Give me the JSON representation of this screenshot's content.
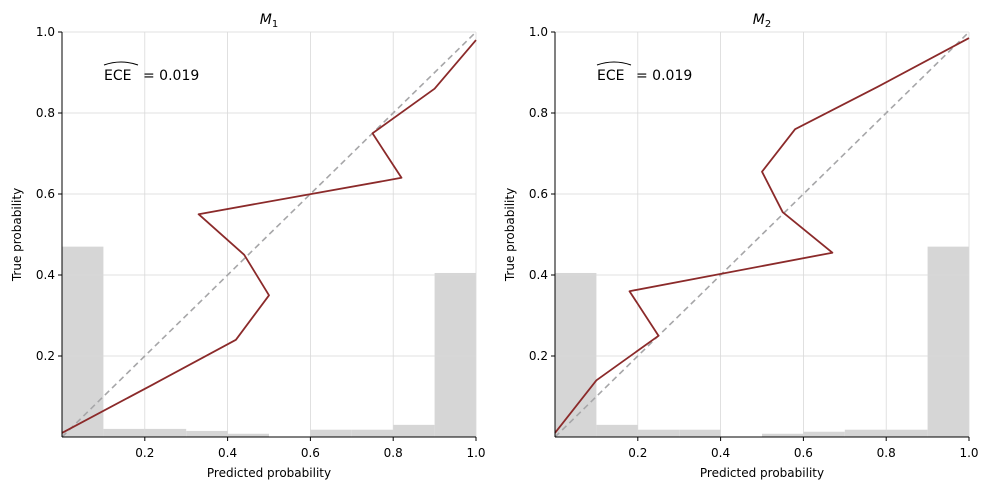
{
  "chart_data": [
    {
      "type": "line",
      "title": "M",
      "title_subscript": "1",
      "xlabel": "Predicted probability",
      "ylabel": "True probability",
      "xlim": [
        0,
        1
      ],
      "ylim": [
        0,
        1
      ],
      "x_ticks": [
        "0.2",
        "0.4",
        "0.6",
        "0.8",
        "1.0"
      ],
      "y_ticks": [
        "0.2",
        "0.4",
        "0.6",
        "0.8",
        "1.0"
      ],
      "grid": true,
      "annotation": {
        "label": "ECE",
        "value": "= 0.019"
      },
      "reference_line": {
        "x": [
          0,
          1
        ],
        "y": [
          0,
          1
        ],
        "color": "#a6a6a8",
        "style": "dashed"
      },
      "series": [
        {
          "color": "#8b2a2a",
          "x": [
            0.0,
            0.22,
            0.42,
            0.5,
            0.44,
            0.33,
            0.82,
            0.75,
            0.9,
            1.0
          ],
          "y": [
            0.01,
            0.13,
            0.24,
            0.35,
            0.45,
            0.55,
            0.64,
            0.75,
            0.86,
            0.98
          ]
        }
      ],
      "histogram": {
        "color": "#d6d6d6",
        "bins": [
          0,
          0.1,
          0.2,
          0.3,
          0.4,
          0.5,
          0.6,
          0.7,
          0.8,
          0.9,
          1.0
        ],
        "heights": [
          0.47,
          0.02,
          0.02,
          0.015,
          0.008,
          0.0,
          0.018,
          0.018,
          0.03,
          0.405
        ]
      }
    },
    {
      "type": "line",
      "title": "M",
      "title_subscript": "2",
      "xlabel": "Predicted probability",
      "ylabel": "True probability",
      "xlim": [
        0,
        1
      ],
      "ylim": [
        0,
        1
      ],
      "x_ticks": [
        "0.2",
        "0.4",
        "0.6",
        "0.8",
        "1.0"
      ],
      "y_ticks": [
        "0.2",
        "0.4",
        "0.6",
        "0.8",
        "1.0"
      ],
      "grid": true,
      "annotation": {
        "label": "ECE",
        "value": "= 0.019"
      },
      "reference_line": {
        "x": [
          0,
          1
        ],
        "y": [
          0,
          1
        ],
        "color": "#a6a6a8",
        "style": "dashed"
      },
      "series": [
        {
          "color": "#8b2a2a",
          "x": [
            0.0,
            0.1,
            0.25,
            0.18,
            0.67,
            0.55,
            0.5,
            0.58,
            0.78,
            1.0
          ],
          "y": [
            0.01,
            0.14,
            0.25,
            0.36,
            0.455,
            0.555,
            0.655,
            0.76,
            0.865,
            0.985
          ]
        }
      ],
      "histogram": {
        "color": "#d6d6d6",
        "bins": [
          0,
          0.1,
          0.2,
          0.3,
          0.4,
          0.5,
          0.6,
          0.7,
          0.8,
          0.9,
          1.0
        ],
        "heights": [
          0.405,
          0.03,
          0.018,
          0.018,
          0.0,
          0.008,
          0.013,
          0.018,
          0.018,
          0.47
        ]
      }
    }
  ]
}
